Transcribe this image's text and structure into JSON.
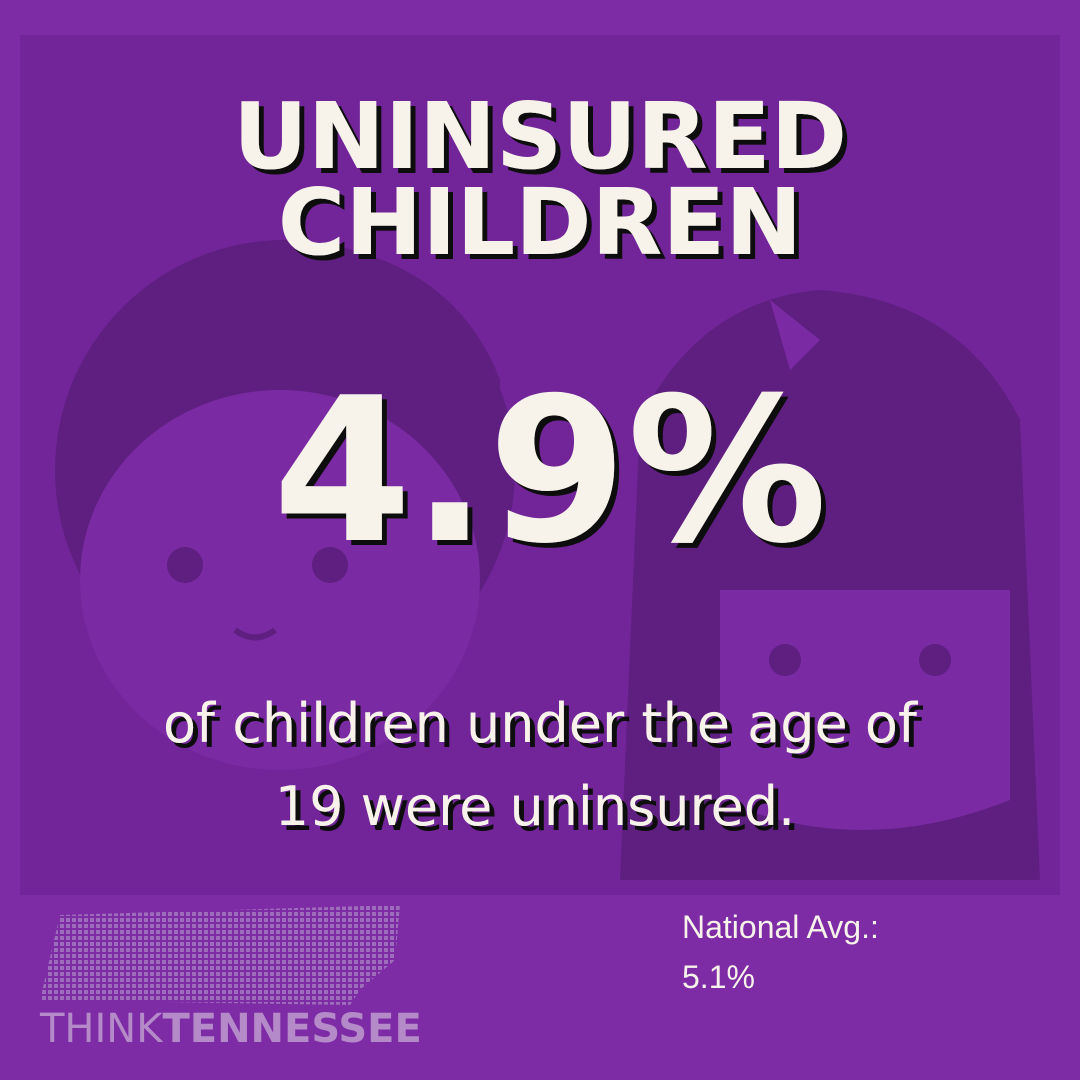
{
  "header": {
    "title_lines": [
      "UNINSURED",
      "CHILDREN"
    ]
  },
  "stat": {
    "value": "4.9%",
    "description_lines": [
      "of children under the age of",
      "19 were uninsured."
    ]
  },
  "national_average": {
    "label": "National Avg.:",
    "value": "5.1%"
  },
  "logo": {
    "think": "THINK",
    "tennessee": "TENNESSEE"
  }
}
